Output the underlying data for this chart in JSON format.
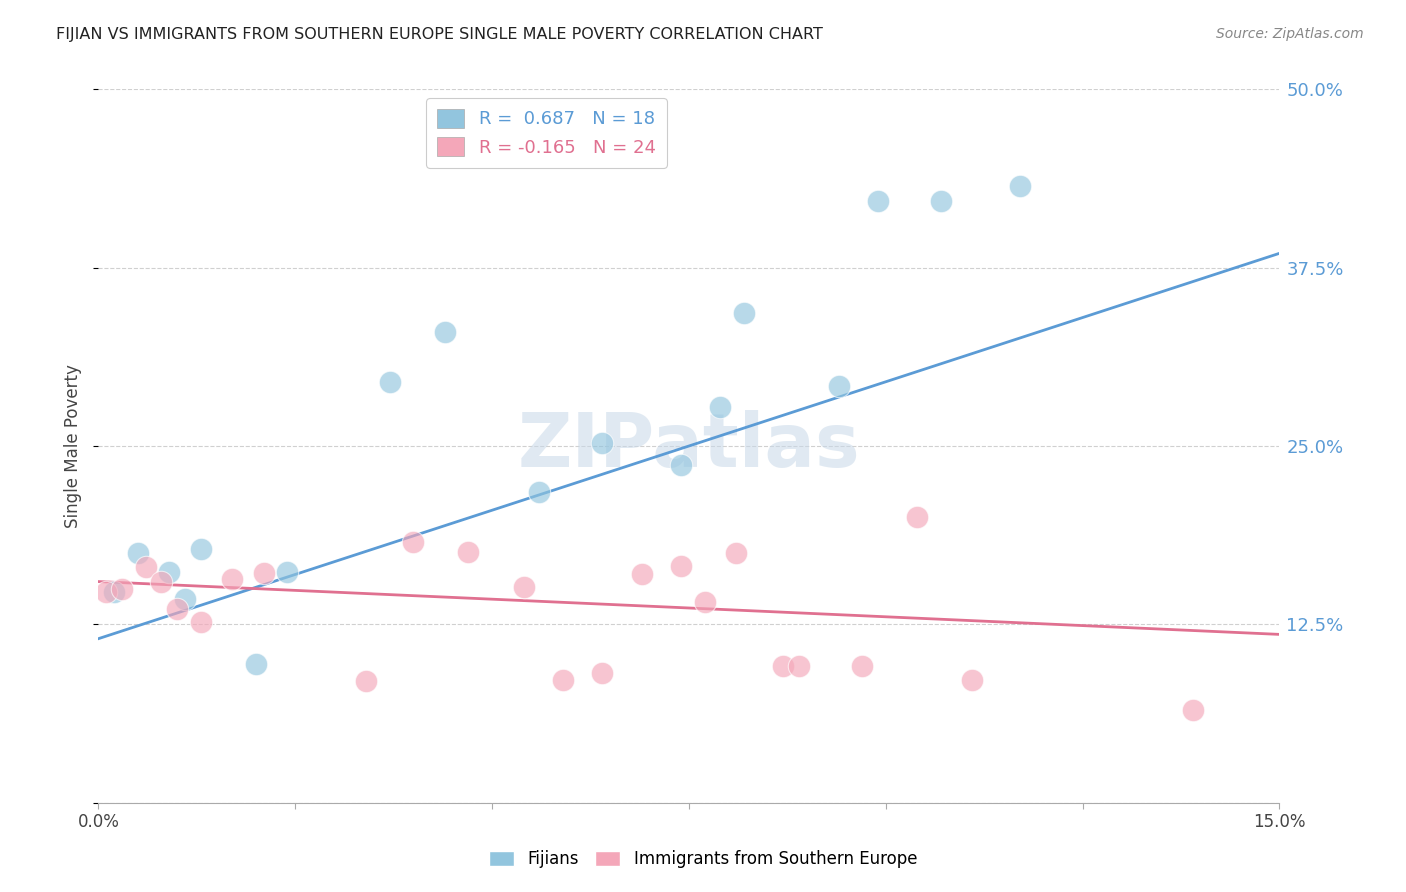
{
  "title": "FIJIAN VS IMMIGRANTS FROM SOUTHERN EUROPE SINGLE MALE POVERTY CORRELATION CHART",
  "source": "Source: ZipAtlas.com",
  "ylabel_label": "Single Male Poverty",
  "xlim": [
    0.0,
    0.15
  ],
  "ylim": [
    0.0,
    0.5
  ],
  "xticks": [
    0.0,
    0.025,
    0.05,
    0.075,
    0.1,
    0.125,
    0.15
  ],
  "xtick_labels": [
    "0.0%",
    "",
    "",
    "",
    "",
    "",
    "15.0%"
  ],
  "yticks": [
    0.0,
    0.125,
    0.25,
    0.375,
    0.5
  ],
  "ytick_labels": [
    "",
    "12.5%",
    "25.0%",
    "37.5%",
    "50.0%"
  ],
  "fijian_R": 0.687,
  "fijian_N": 18,
  "se_R": -0.165,
  "se_N": 24,
  "fijian_color": "#92c5de",
  "se_color": "#f4a7b9",
  "fijian_line_color": "#5b9bd5",
  "se_line_color": "#e07090",
  "background_color": "#ffffff",
  "fijian_x": [
    0.002,
    0.005,
    0.009,
    0.011,
    0.013,
    0.02,
    0.024,
    0.037,
    0.044,
    0.056,
    0.064,
    0.074,
    0.079,
    0.082,
    0.094,
    0.099,
    0.107,
    0.117
  ],
  "fijian_y": [
    0.148,
    0.175,
    0.162,
    0.143,
    0.178,
    0.097,
    0.162,
    0.295,
    0.33,
    0.218,
    0.252,
    0.237,
    0.277,
    0.343,
    0.292,
    0.422,
    0.422,
    0.432
  ],
  "se_x": [
    0.001,
    0.003,
    0.006,
    0.008,
    0.01,
    0.013,
    0.017,
    0.021,
    0.034,
    0.04,
    0.047,
    0.054,
    0.059,
    0.064,
    0.069,
    0.074,
    0.077,
    0.081,
    0.087,
    0.089,
    0.097,
    0.104,
    0.111,
    0.139
  ],
  "se_y": [
    0.148,
    0.15,
    0.165,
    0.155,
    0.136,
    0.127,
    0.157,
    0.161,
    0.085,
    0.183,
    0.176,
    0.151,
    0.086,
    0.091,
    0.16,
    0.166,
    0.141,
    0.175,
    0.096,
    0.096,
    0.096,
    0.2,
    0.086,
    0.065
  ],
  "fijian_line_x0": 0.0,
  "fijian_line_y0": 0.115,
  "fijian_line_x1": 0.15,
  "fijian_line_y1": 0.385,
  "se_line_x0": 0.0,
  "se_line_y0": 0.155,
  "se_line_x1": 0.15,
  "se_line_y1": 0.118
}
